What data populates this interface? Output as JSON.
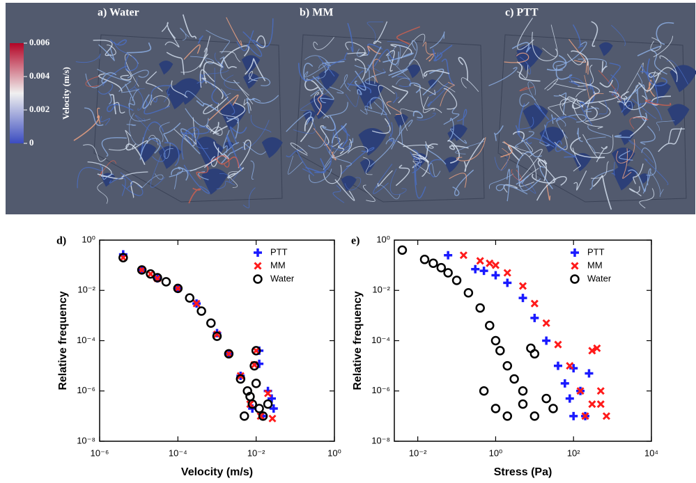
{
  "chart_data": [
    {
      "type": "colorbar",
      "title": "Velocity (m/s)",
      "panels": [
        "a) Water",
        "b) MM",
        "c) PTT"
      ],
      "ylim": [
        0,
        0.006
      ],
      "yticks": [
        0,
        0.002,
        0.004,
        0.006
      ],
      "colors": [
        "#3b4cc0",
        "#f0f0f0",
        "#b40426"
      ]
    },
    {
      "type": "scatter",
      "title": "d)",
      "xlabel": "Velocity (m/s)",
      "ylabel": "Relative frequency",
      "log_x": true,
      "log_y": true,
      "legend": "upper right",
      "xlim": [
        1e-06,
        1
      ],
      "xticks": [
        {
          "value": 1e-06,
          "label": "10⁻⁶"
        },
        {
          "value": 0.0001,
          "label": "10⁻⁴"
        },
        {
          "value": 0.01,
          "label": "10⁻²"
        },
        {
          "value": 1,
          "label": "10⁰"
        }
      ],
      "ylim": [
        1e-08,
        1
      ],
      "yticks": [
        {
          "value": 1e-08,
          "label": "10⁻⁸"
        },
        {
          "value": 1e-06,
          "label": "10⁻⁶"
        },
        {
          "value": 0.0001,
          "label": "10⁻⁴"
        },
        {
          "value": 0.01,
          "label": "10⁻²"
        },
        {
          "value": 1,
          "label": "10⁰"
        }
      ],
      "series": [
        {
          "name": "PTT",
          "color": "#1a1aff",
          "marker": "plus",
          "x": [
            4e-06,
            1.2e-05,
            3e-05,
            0.0001,
            0.0003,
            0.001,
            0.002,
            0.004,
            0.012,
            0.012,
            0.02,
            0.025,
            0.028,
            0.008,
            0.015
          ],
          "values": [
            0.27,
            0.065,
            0.03,
            0.012,
            0.003,
            0.0002,
            3e-05,
            4e-06,
            4e-05,
            1.2e-05,
            1e-06,
            5e-07,
            2e-07,
            2e-07,
            1e-07
          ]
        },
        {
          "name": "MM",
          "color": "#ff1a1a",
          "marker": "x",
          "x": [
            4e-06,
            1.2e-05,
            2e-05,
            3e-05,
            0.0001,
            0.0003,
            0.001,
            0.002,
            0.004,
            0.01,
            0.009,
            0.02,
            0.026,
            0.007,
            0.013
          ],
          "values": [
            0.2,
            0.065,
            0.045,
            0.03,
            0.012,
            0.003,
            0.00018,
            3e-05,
            4e-06,
            4e-05,
            1.1e-05,
            8e-07,
            8e-08,
            3e-07,
            1e-07
          ]
        },
        {
          "name": "Water",
          "color": "#000000",
          "marker": "circle",
          "x": [
            4e-06,
            1.2e-05,
            2e-05,
            3e-05,
            5e-05,
            0.0001,
            0.0002,
            0.0004,
            0.0007,
            0.001,
            0.002,
            0.004,
            0.006,
            0.008,
            0.01,
            0.009,
            0.005,
            0.007,
            0.012,
            0.015,
            0.02,
            0.01
          ],
          "values": [
            0.2,
            0.065,
            0.045,
            0.032,
            0.022,
            0.012,
            0.005,
            0.0015,
            0.0005,
            0.00015,
            3e-05,
            3e-06,
            1e-06,
            3e-07,
            4e-05,
            1e-05,
            1e-07,
            6e-07,
            2e-07,
            1e-07,
            3e-07,
            2e-06
          ]
        }
      ]
    },
    {
      "type": "scatter",
      "title": "e)",
      "xlabel": "Stress (Pa)",
      "ylabel": "Relative frequency",
      "log_x": true,
      "log_y": true,
      "legend": "upper right",
      "xlim": [
        0.0025,
        10000
      ],
      "xticks": [
        {
          "value": 0.01,
          "label": "10⁻²"
        },
        {
          "value": 1,
          "label": "10⁰"
        },
        {
          "value": 100,
          "label": "10²"
        },
        {
          "value": 10000,
          "label": "10⁴"
        }
      ],
      "ylim": [
        1e-08,
        1
      ],
      "yticks": [
        {
          "value": 1e-08,
          "label": "10⁻⁸"
        },
        {
          "value": 1e-06,
          "label": "10⁻⁶"
        },
        {
          "value": 0.0001,
          "label": "10⁻⁴"
        },
        {
          "value": 0.01,
          "label": "10⁻²"
        },
        {
          "value": 1,
          "label": "10⁰"
        }
      ],
      "series": [
        {
          "name": "PTT",
          "color": "#1a1aff",
          "marker": "plus",
          "x": [
            0.06,
            0.3,
            0.5,
            1,
            2,
            5,
            10,
            20,
            40,
            60,
            80,
            100,
            100,
            150,
            200,
            250
          ],
          "values": [
            0.25,
            0.07,
            0.06,
            0.04,
            0.02,
            0.005,
            0.0008,
            0.0001,
            1e-05,
            2e-06,
            5e-07,
            1e-07,
            8e-06,
            1e-06,
            1e-07,
            5e-06
          ]
        },
        {
          "name": "MM",
          "color": "#ff1a1a",
          "marker": "x",
          "x": [
            0.15,
            0.4,
            0.7,
            1,
            2,
            5,
            10,
            20,
            40,
            80,
            150,
            300,
            500,
            700,
            300,
            400,
            200,
            500
          ],
          "values": [
            0.25,
            0.15,
            0.12,
            0.1,
            0.05,
            0.015,
            0.003,
            0.0005,
            7e-05,
            1e-05,
            1e-06,
            3e-07,
            3e-07,
            1e-07,
            4e-05,
            5e-05,
            1e-07,
            1e-06
          ]
        },
        {
          "name": "Water",
          "color": "#000000",
          "marker": "circle",
          "x": [
            0.004,
            0.015,
            0.025,
            0.04,
            0.06,
            0.1,
            0.2,
            0.4,
            0.7,
            1,
            1.3,
            2,
            3,
            5,
            8,
            10,
            0.5,
            1,
            2,
            5,
            10,
            20,
            30
          ],
          "values": [
            0.4,
            0.17,
            0.12,
            0.08,
            0.05,
            0.025,
            0.008,
            0.002,
            0.0004,
            0.0001,
            4e-05,
            1e-05,
            3e-06,
            1e-06,
            5e-05,
            3e-05,
            1e-06,
            2e-07,
            1e-07,
            3e-07,
            1e-07,
            5e-07,
            2e-07
          ]
        }
      ]
    }
  ]
}
